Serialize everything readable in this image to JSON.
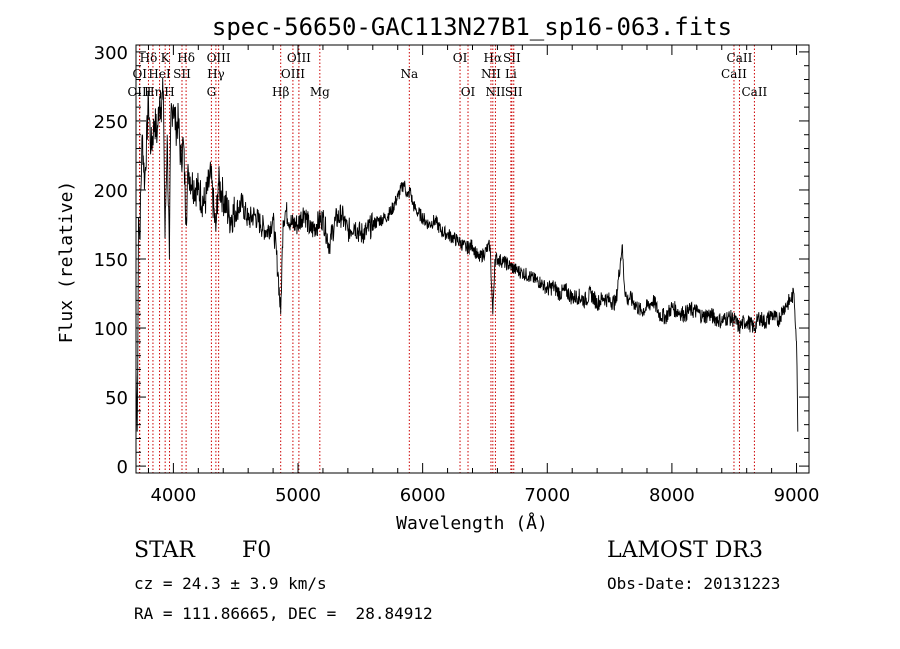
{
  "chart_data": {
    "type": "line",
    "title": "spec-56650-GAC113N27B1_sp16-063.fits",
    "xlabel": "Wavelength (Å)",
    "ylabel": "Flux (relative)",
    "xlim": [
      3700,
      9100
    ],
    "ylim": [
      -5,
      305
    ],
    "xticks": [
      4000,
      5000,
      6000,
      7000,
      8000,
      9000
    ],
    "yticks": [
      0,
      50,
      100,
      150,
      200,
      250,
      300
    ],
    "series": [
      {
        "name": "flux",
        "x": [
          3700,
          3710,
          3720,
          3730,
          3750,
          3770,
          3800,
          3820,
          3850,
          3870,
          3890,
          3900,
          3920,
          3933,
          3950,
          3968,
          3980,
          4000,
          4020,
          4040,
          4060,
          4080,
          4102,
          4120,
          4150,
          4200,
          4250,
          4300,
          4340,
          4360,
          4400,
          4450,
          4500,
          4550,
          4600,
          4650,
          4700,
          4750,
          4800,
          4840,
          4861,
          4880,
          4900,
          4950,
          5000,
          5050,
          5100,
          5150,
          5200,
          5250,
          5300,
          5350,
          5400,
          5450,
          5500,
          5550,
          5600,
          5650,
          5700,
          5750,
          5800,
          5850,
          5880,
          5900,
          5920,
          5950,
          6000,
          6050,
          6100,
          6150,
          6200,
          6250,
          6300,
          6350,
          6400,
          6450,
          6500,
          6540,
          6563,
          6580,
          6600,
          6650,
          6700,
          6750,
          6800,
          6850,
          6900,
          6950,
          7000,
          7050,
          7100,
          7150,
          7200,
          7250,
          7300,
          7350,
          7400,
          7450,
          7500,
          7550,
          7600,
          7620,
          7640,
          7660,
          7700,
          7750,
          7800,
          7850,
          7900,
          7950,
          8000,
          8050,
          8100,
          8150,
          8200,
          8250,
          8300,
          8350,
          8400,
          8450,
          8500,
          8542,
          8560,
          8600,
          8662,
          8700,
          8750,
          8800,
          8850,
          8900,
          8950,
          8980,
          9000,
          9010
        ],
        "y": [
          70,
          25,
          180,
          165,
          240,
          205,
          265,
          230,
          250,
          240,
          268,
          260,
          272,
          165,
          240,
          150,
          255,
          262,
          245,
          250,
          220,
          235,
          180,
          215,
          205,
          200,
          190,
          210,
          170,
          205,
          195,
          180,
          185,
          190,
          178,
          182,
          175,
          170,
          178,
          140,
          110,
          178,
          185,
          175,
          175,
          185,
          170,
          175,
          180,
          160,
          178,
          182,
          170,
          175,
          168,
          170,
          175,
          178,
          180,
          185,
          195,
          205,
          195,
          200,
          190,
          185,
          180,
          175,
          178,
          170,
          168,
          165,
          162,
          158,
          160,
          150,
          155,
          160,
          110,
          150,
          150,
          148,
          145,
          142,
          140,
          138,
          135,
          133,
          128,
          130,
          125,
          127,
          122,
          123,
          120,
          125,
          118,
          122,
          120,
          118,
          160,
          130,
          120,
          122,
          118,
          112,
          115,
          120,
          110,
          108,
          115,
          112,
          110,
          113,
          112,
          108,
          110,
          107,
          105,
          108,
          106,
          100,
          103,
          105,
          100,
          108,
          104,
          110,
          105,
          115,
          120,
          125,
          90,
          25
        ]
      }
    ],
    "spectral_lines": [
      {
        "label": "Hδ",
        "wavelength": 3800,
        "row": 1
      },
      {
        "label": "OI",
        "wavelength": 3730,
        "row": 2
      },
      {
        "label": "OIII",
        "wavelength": 3728,
        "row": 3
      },
      {
        "label": "Hη",
        "wavelength": 3836,
        "row": 3
      },
      {
        "label": "HeI",
        "wavelength": 3889,
        "row": 2
      },
      {
        "label": "K",
        "wavelength": 3934,
        "row": 1
      },
      {
        "label": "SII",
        "wavelength": 4069,
        "row": 2
      },
      {
        "label": "H",
        "wavelength": 3969,
        "row": 3
      },
      {
        "label": "Hδ",
        "wavelength": 4102,
        "row": 1
      },
      {
        "label": "OIII",
        "wavelength": 4363,
        "row": 1
      },
      {
        "label": "Hγ",
        "wavelength": 4341,
        "row": 2
      },
      {
        "label": "G",
        "wavelength": 4305,
        "row": 3
      },
      {
        "label": "Hβ",
        "wavelength": 4861,
        "row": 3
      },
      {
        "label": "OIII",
        "wavelength": 5007,
        "row": 1
      },
      {
        "label": "OIII",
        "wavelength": 4959,
        "row": 2
      },
      {
        "label": "Mg",
        "wavelength": 5175,
        "row": 3
      },
      {
        "label": "Na",
        "wavelength": 5893,
        "row": 2
      },
      {
        "label": "OI",
        "wavelength": 6300,
        "row": 1
      },
      {
        "label": "OI",
        "wavelength": 6364,
        "row": 3
      },
      {
        "label": "Hα",
        "wavelength": 6563,
        "row": 1
      },
      {
        "label": "NII",
        "wavelength": 6548,
        "row": 2
      },
      {
        "label": "NII",
        "wavelength": 6584,
        "row": 3
      },
      {
        "label": "SII",
        "wavelength": 6716,
        "row": 1
      },
      {
        "label": "Li",
        "wavelength": 6708,
        "row": 2
      },
      {
        "label": "SII",
        "wavelength": 6731,
        "row": 3
      },
      {
        "label": "CaII",
        "wavelength": 8542,
        "row": 1
      },
      {
        "label": "CaII",
        "wavelength": 8498,
        "row": 2
      },
      {
        "label": "CaII",
        "wavelength": 8662,
        "row": 3
      }
    ]
  },
  "info": {
    "object_class": "STAR",
    "subclass": "F0",
    "survey": "LAMOST DR3",
    "cz": "cz = 24.3 ± 3.9 km/s",
    "obs_date": "Obs-Date: 20131223",
    "coords": "RA = 111.86665, DEC =  28.84912"
  },
  "colors": {
    "line_markers": "#cc0000",
    "spectrum": "#000000",
    "axes": "#000000"
  }
}
